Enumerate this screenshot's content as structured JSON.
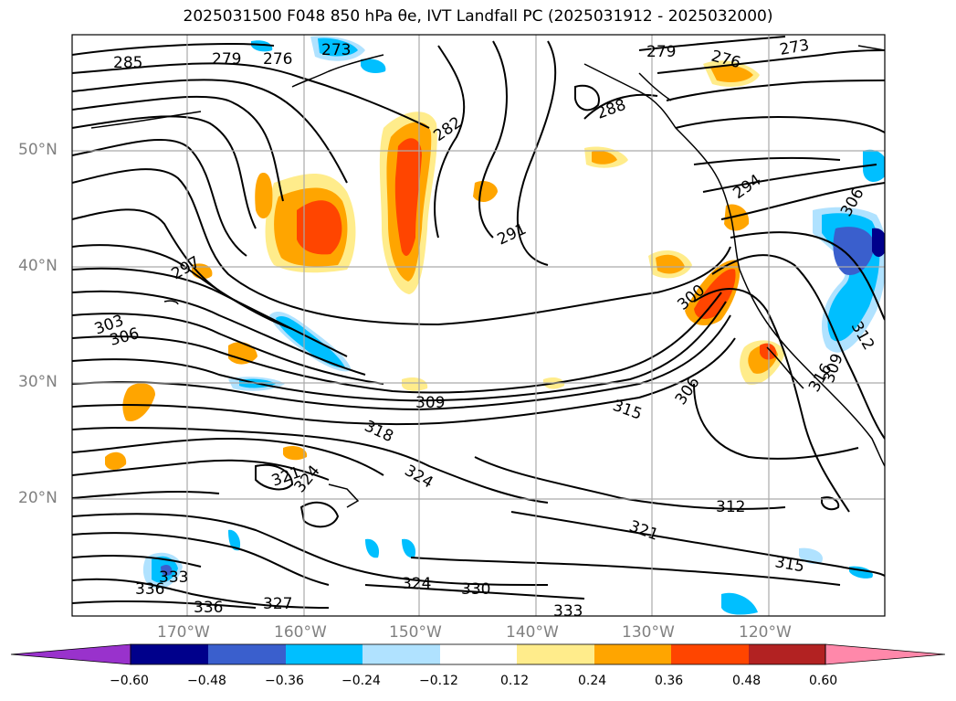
{
  "title": "2025031500 F048 850 hPa θe, IVT Landfall PC (2025031912 - 2025032000)",
  "lat_labels": [
    "50°N",
    "40°N",
    "30°N",
    "20°N"
  ],
  "lon_labels": [
    "170°W",
    "160°W",
    "150°W",
    "140°W",
    "130°W",
    "120°W"
  ],
  "contour_labels": [
    "285",
    "279",
    "276",
    "273",
    "282",
    "291",
    "297",
    "303",
    "306",
    "300",
    "294",
    "306",
    "312",
    "309",
    "315",
    "318",
    "324",
    "321",
    "324",
    "306",
    "316",
    "333",
    "336",
    "336",
    "327",
    "324",
    "330",
    "333",
    "312",
    "321",
    "315",
    "279",
    "276",
    "273",
    "288",
    "309"
  ],
  "colorbar": {
    "ticks": [
      "−0.60",
      "−0.48",
      "−0.36",
      "−0.24",
      "−0.12",
      "0.12",
      "0.24",
      "0.36",
      "0.48",
      "0.60"
    ],
    "colors": [
      "#9932cc",
      "#00008b",
      "#3a5fcd",
      "#00bfff",
      "#b0e2ff",
      "#ffffff",
      "#ffec8b",
      "#ffa500",
      "#ff4500",
      "#b22222",
      "#ff88aa"
    ]
  }
}
